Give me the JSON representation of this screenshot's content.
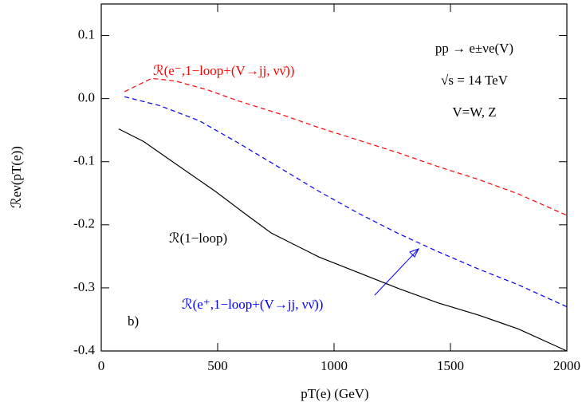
{
  "chart_data": {
    "type": "line",
    "xlabel": "pT(e) (GeV)",
    "ylabel": "ℛeν(pT(e))",
    "xlim": [
      0,
      2000
    ],
    "ylim": [
      -0.4,
      0.15
    ],
    "xticks": [
      0,
      500,
      1000,
      1500,
      2000
    ],
    "yticks": [
      0.1,
      {
        "value": 0,
        "label": "0.0"
      },
      -0.1,
      -0.2,
      -0.3,
      -0.4
    ],
    "annotations": [
      "pp → e±νe(V)",
      "√s = 14 TeV",
      "V=W, Z",
      "b)",
      "ℛ(1−loop)",
      "ℛ(e⁻,1−loop+(V→jj, νν̄))",
      "ℛ(e⁺,1−loop+(V→jj, νν̄))"
    ],
    "series": [
      {
        "color": "#000000",
        "dash": "solid",
        "x": [
          75,
          182,
          318,
          490,
          627,
          730,
          935,
          1106,
          1277,
          1449,
          1620,
          1791,
          2000
        ],
        "values": [
          -0.048,
          -0.068,
          -0.103,
          -0.147,
          -0.185,
          -0.213,
          -0.251,
          -0.276,
          -0.301,
          -0.324,
          -0.343,
          -0.365,
          -0.4
        ]
      },
      {
        "color": "#0000ff",
        "dash": "dashed",
        "x": [
          100,
          250,
          421,
          592,
          764,
          935,
          1106,
          1277,
          1449,
          1620,
          1791,
          2000
        ],
        "values": [
          0.003,
          -0.011,
          -0.035,
          -0.071,
          -0.109,
          -0.147,
          -0.182,
          -0.214,
          -0.243,
          -0.27,
          -0.295,
          -0.33
        ]
      },
      {
        "color": "#ff0000",
        "dash": "dashed",
        "x": [
          100,
          216,
          318,
          455,
          592,
          764,
          935,
          1106,
          1277,
          1449,
          1620,
          1791,
          2000
        ],
        "values": [
          0.011,
          0.032,
          0.028,
          0.014,
          -0.004,
          -0.024,
          -0.046,
          -0.066,
          -0.086,
          -0.108,
          -0.128,
          -0.151,
          -0.185
        ]
      }
    ]
  }
}
